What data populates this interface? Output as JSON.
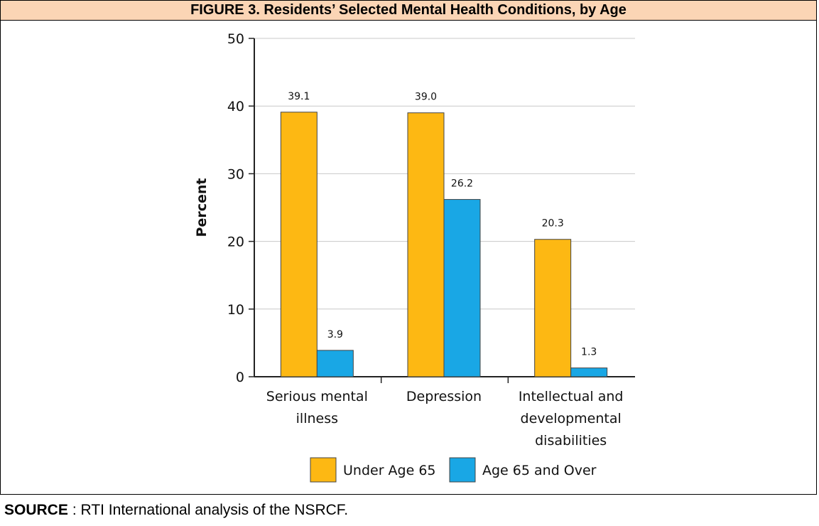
{
  "figure_title": "FIGURE 3. Residents’ Selected Mental Health Conditions, by Age",
  "source": {
    "label": "SOURCE",
    "text": ":  RTI International analysis of the NSRCF."
  },
  "chart_data": {
    "type": "bar",
    "title": "",
    "xlabel": "",
    "ylabel": "Percent",
    "ylim": [
      0,
      50
    ],
    "yticks": [
      0,
      10,
      20,
      30,
      40,
      50
    ],
    "grid": true,
    "legend_position": "bottom",
    "categories": [
      [
        "Serious mental",
        "illness"
      ],
      [
        "Depression"
      ],
      [
        "Intellectual and",
        "developmental",
        "disabilities"
      ]
    ],
    "series": [
      {
        "name": "Under Age 65",
        "color": "#FDB813",
        "values": [
          39.1,
          39.0,
          20.3
        ],
        "labels": [
          "39.1",
          "39.0",
          "20.3"
        ]
      },
      {
        "name": "Age 65 and Over",
        "color": "#19A7E5",
        "values": [
          3.9,
          26.2,
          1.3
        ],
        "labels": [
          "3.9",
          "26.2",
          "1.3"
        ]
      }
    ]
  }
}
